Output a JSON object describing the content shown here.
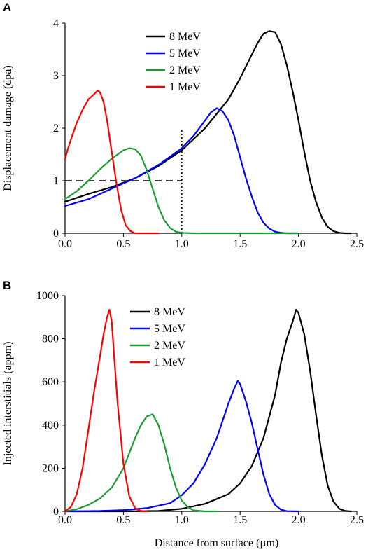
{
  "chart_data": [
    {
      "panel": "A",
      "type": "line",
      "title": "",
      "xlabel": "",
      "ylabel": "Displacement damage (dpa)",
      "xlim": [
        0,
        2.5
      ],
      "ylim": [
        0,
        4
      ],
      "xticks": [
        "0.0",
        "0.5",
        "1.0",
        "1.5",
        "2.0",
        "2.5"
      ],
      "yticks": [
        "0",
        "1",
        "2",
        "3",
        "4"
      ],
      "grid": false,
      "legend_position": "top-center",
      "series": [
        {
          "name": "8 MeV",
          "color": "#000000",
          "x": [
            0,
            0.2,
            0.4,
            0.6,
            0.8,
            1.0,
            1.2,
            1.4,
            1.5,
            1.6,
            1.65,
            1.7,
            1.75,
            1.8,
            1.85,
            1.9,
            1.95,
            2.0,
            2.05,
            2.1,
            2.15,
            2.2,
            2.25,
            2.3,
            2.35,
            2.4,
            2.45
          ],
          "y": [
            0.6,
            0.75,
            0.88,
            1.05,
            1.28,
            1.58,
            2.0,
            2.55,
            2.95,
            3.4,
            3.62,
            3.8,
            3.85,
            3.83,
            3.6,
            3.2,
            2.7,
            2.15,
            1.55,
            1.0,
            0.6,
            0.3,
            0.12,
            0.04,
            0.01,
            0.0,
            0.0
          ]
        },
        {
          "name": "5 MeV",
          "color": "#0000ff",
          "x": [
            0,
            0.2,
            0.4,
            0.6,
            0.8,
            1.0,
            1.1,
            1.2,
            1.25,
            1.3,
            1.35,
            1.4,
            1.45,
            1.5,
            1.55,
            1.6,
            1.65,
            1.7,
            1.75,
            1.8,
            1.85,
            1.9,
            2.0
          ],
          "y": [
            0.52,
            0.65,
            0.85,
            1.05,
            1.3,
            1.62,
            1.85,
            2.15,
            2.3,
            2.38,
            2.32,
            2.15,
            1.85,
            1.45,
            1.05,
            0.7,
            0.4,
            0.2,
            0.09,
            0.03,
            0.01,
            0.0,
            0.0
          ]
        },
        {
          "name": "2 MeV",
          "color": "#1e9c34",
          "x": [
            0,
            0.1,
            0.2,
            0.3,
            0.4,
            0.5,
            0.55,
            0.6,
            0.65,
            0.7,
            0.75,
            0.8,
            0.85,
            0.9,
            0.95,
            1.0,
            1.1,
            1.2,
            1.5,
            2.0
          ],
          "y": [
            0.65,
            0.8,
            1.0,
            1.22,
            1.42,
            1.58,
            1.62,
            1.6,
            1.48,
            1.2,
            0.85,
            0.5,
            0.25,
            0.1,
            0.03,
            0.01,
            0.0,
            0.0,
            0.0,
            0.0
          ]
        },
        {
          "name": "1 MeV",
          "color": "#ff0000",
          "x": [
            0,
            0.03,
            0.06,
            0.1,
            0.15,
            0.2,
            0.25,
            0.28,
            0.3,
            0.33,
            0.36,
            0.4,
            0.44,
            0.48,
            0.52,
            0.56,
            0.6,
            0.65,
            0.7,
            0.8
          ],
          "y": [
            1.42,
            1.65,
            1.85,
            2.1,
            2.35,
            2.55,
            2.65,
            2.72,
            2.68,
            2.5,
            2.15,
            1.55,
            0.95,
            0.45,
            0.15,
            0.04,
            0.0,
            0.0,
            0.0,
            0.0
          ]
        }
      ],
      "reference_lines": [
        {
          "style": "dashed",
          "x": [
            0,
            1.0
          ],
          "y": [
            1.0,
            1.0
          ]
        },
        {
          "style": "dotted",
          "x": [
            1.0,
            1.0
          ],
          "y": [
            0,
            2.0
          ]
        }
      ]
    },
    {
      "panel": "B",
      "type": "line",
      "title": "",
      "xlabel": "Distance from surface (µm)",
      "ylabel": "Injected interstitials (appm)",
      "xlim": [
        0,
        2.5
      ],
      "ylim": [
        0,
        1000
      ],
      "xticks": [
        "0.0",
        "0.5",
        "1.0",
        "1.5",
        "2.0",
        "2.5"
      ],
      "yticks": [
        "0",
        "200",
        "400",
        "600",
        "800",
        "1000"
      ],
      "grid": false,
      "legend_position": "top-center",
      "series": [
        {
          "name": "8 MeV",
          "color": "#000000",
          "x": [
            0,
            0.5,
            0.8,
            1.0,
            1.2,
            1.4,
            1.5,
            1.6,
            1.7,
            1.8,
            1.85,
            1.9,
            1.95,
            1.98,
            2.0,
            2.05,
            2.1,
            2.15,
            2.2,
            2.25,
            2.3,
            2.35,
            2.4,
            2.45
          ],
          "y": [
            0,
            0,
            2,
            12,
            35,
            80,
            130,
            210,
            340,
            540,
            690,
            800,
            880,
            935,
            920,
            820,
            650,
            450,
            260,
            120,
            45,
            12,
            2,
            0
          ]
        },
        {
          "name": "5 MeV",
          "color": "#0000ff",
          "x": [
            0,
            0.3,
            0.5,
            0.7,
            0.9,
            1.0,
            1.1,
            1.2,
            1.3,
            1.35,
            1.4,
            1.45,
            1.48,
            1.5,
            1.55,
            1.6,
            1.65,
            1.7,
            1.75,
            1.8,
            1.85,
            1.9,
            2.0
          ],
          "y": [
            0,
            2,
            6,
            15,
            38,
            75,
            130,
            220,
            340,
            420,
            500,
            570,
            605,
            590,
            510,
            410,
            290,
            170,
            80,
            30,
            8,
            1,
            0
          ]
        },
        {
          "name": "2 MeV",
          "color": "#1e9c34",
          "x": [
            0,
            0.1,
            0.2,
            0.3,
            0.4,
            0.5,
            0.55,
            0.6,
            0.65,
            0.7,
            0.75,
            0.8,
            0.85,
            0.9,
            0.95,
            1.0,
            1.05,
            1.1,
            1.2,
            1.3
          ],
          "y": [
            0,
            10,
            30,
            60,
            110,
            200,
            270,
            340,
            400,
            440,
            450,
            400,
            310,
            200,
            110,
            50,
            20,
            5,
            0,
            0
          ]
        },
        {
          "name": "1 MeV",
          "color": "#ff0000",
          "x": [
            0,
            0.05,
            0.1,
            0.15,
            0.2,
            0.25,
            0.3,
            0.33,
            0.36,
            0.38,
            0.4,
            0.42,
            0.45,
            0.5,
            0.55,
            0.6,
            0.65,
            0.7
          ],
          "y": [
            0,
            20,
            80,
            200,
            380,
            560,
            720,
            820,
            900,
            935,
            880,
            720,
            500,
            220,
            70,
            15,
            2,
            0
          ]
        }
      ]
    }
  ]
}
